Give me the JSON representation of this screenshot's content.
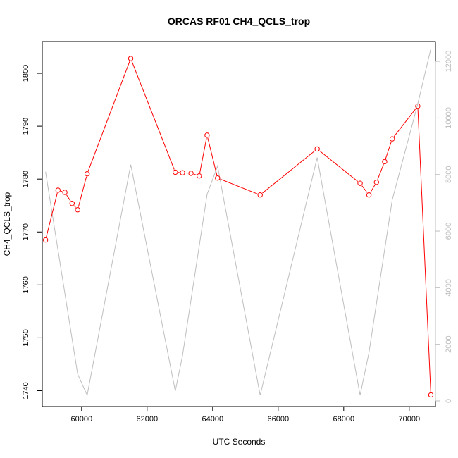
{
  "chart_data": {
    "type": "line",
    "title": "ORCAS RF01 CH4_QCLS_trop",
    "xlabel": "UTC Seconds",
    "ylabel": "CH4_QCLS_trop",
    "xlim": [
      58800,
      70800
    ],
    "ylim": [
      1737,
      1806
    ],
    "y2lim": [
      -200,
      12700
    ],
    "x_ticks": [
      60000,
      62000,
      64000,
      66000,
      68000,
      70000
    ],
    "y_ticks": [
      1740,
      1750,
      1760,
      1770,
      1780,
      1790,
      1800
    ],
    "y2_ticks": [
      0,
      2000,
      4000,
      6000,
      8000,
      10000,
      12000
    ],
    "grid": false,
    "colors": {
      "primary": "#ff0000",
      "secondary": "#bebebe",
      "axis": "#000000"
    },
    "series": [
      {
        "axis": "left",
        "style": "line-with-open-circles",
        "color": "#ff0000",
        "points": [
          [
            58900,
            1768.5
          ],
          [
            59280,
            1777.9
          ],
          [
            59490,
            1777.5
          ],
          [
            59710,
            1775.4
          ],
          [
            59880,
            1774.2
          ],
          [
            60170,
            1781.0
          ],
          [
            61500,
            1802.8
          ],
          [
            62860,
            1781.3
          ],
          [
            63080,
            1781.2
          ],
          [
            63340,
            1781.1
          ],
          [
            63590,
            1780.6
          ],
          [
            63830,
            1788.3
          ],
          [
            64150,
            1780.2
          ],
          [
            65450,
            1777.0
          ],
          [
            67190,
            1785.7
          ],
          [
            68500,
            1779.2
          ],
          [
            68770,
            1777.0
          ],
          [
            69000,
            1779.4
          ],
          [
            69250,
            1783.3
          ],
          [
            69480,
            1787.6
          ],
          [
            70260,
            1793.8
          ],
          [
            70660,
            1739.2
          ]
        ]
      },
      {
        "axis": "right",
        "style": "line",
        "color": "#bebebe",
        "points": [
          [
            58900,
            8100
          ],
          [
            59880,
            950
          ],
          [
            60170,
            200
          ],
          [
            61500,
            8350
          ],
          [
            62860,
            350
          ],
          [
            63080,
            1600
          ],
          [
            63830,
            7300
          ],
          [
            64150,
            8300
          ],
          [
            65450,
            200
          ],
          [
            67190,
            8600
          ],
          [
            68500,
            200
          ],
          [
            68770,
            1700
          ],
          [
            69480,
            7100
          ],
          [
            70260,
            10500
          ],
          [
            70660,
            12450
          ]
        ]
      }
    ]
  }
}
